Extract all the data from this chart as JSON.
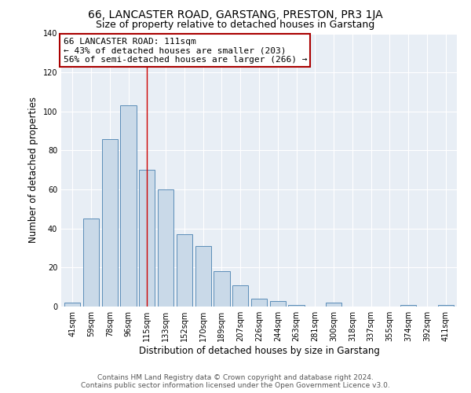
{
  "title": "66, LANCASTER ROAD, GARSTANG, PRESTON, PR3 1JA",
  "subtitle": "Size of property relative to detached houses in Garstang",
  "xlabel": "Distribution of detached houses by size in Garstang",
  "ylabel": "Number of detached properties",
  "bar_labels": [
    "41sqm",
    "59sqm",
    "78sqm",
    "96sqm",
    "115sqm",
    "133sqm",
    "152sqm",
    "170sqm",
    "189sqm",
    "207sqm",
    "226sqm",
    "244sqm",
    "263sqm",
    "281sqm",
    "300sqm",
    "318sqm",
    "337sqm",
    "355sqm",
    "374sqm",
    "392sqm",
    "411sqm"
  ],
  "bar_values": [
    2,
    45,
    86,
    103,
    70,
    60,
    37,
    31,
    18,
    11,
    4,
    3,
    1,
    0,
    2,
    0,
    0,
    0,
    1,
    0,
    1
  ],
  "bar_color": "#c9d9e8",
  "bar_edge_color": "#5b8db8",
  "red_line_index": 4,
  "annotation_text": "66 LANCASTER ROAD: 111sqm\n← 43% of detached houses are smaller (203)\n56% of semi-detached houses are larger (266) →",
  "annotation_box_facecolor": "#ffffff",
  "annotation_box_edgecolor": "#aa0000",
  "red_line_color": "#cc0000",
  "ylim": [
    0,
    140
  ],
  "yticks": [
    0,
    20,
    40,
    60,
    80,
    100,
    120,
    140
  ],
  "footer_line1": "Contains HM Land Registry data © Crown copyright and database right 2024.",
  "footer_line2": "Contains public sector information licensed under the Open Government Licence v3.0.",
  "plot_bg_color": "#e8eef5",
  "fig_bg_color": "#ffffff",
  "grid_color": "#ffffff",
  "title_fontsize": 10,
  "subtitle_fontsize": 9,
  "axis_label_fontsize": 8.5,
  "tick_fontsize": 7,
  "annotation_fontsize": 8,
  "footer_fontsize": 6.5
}
